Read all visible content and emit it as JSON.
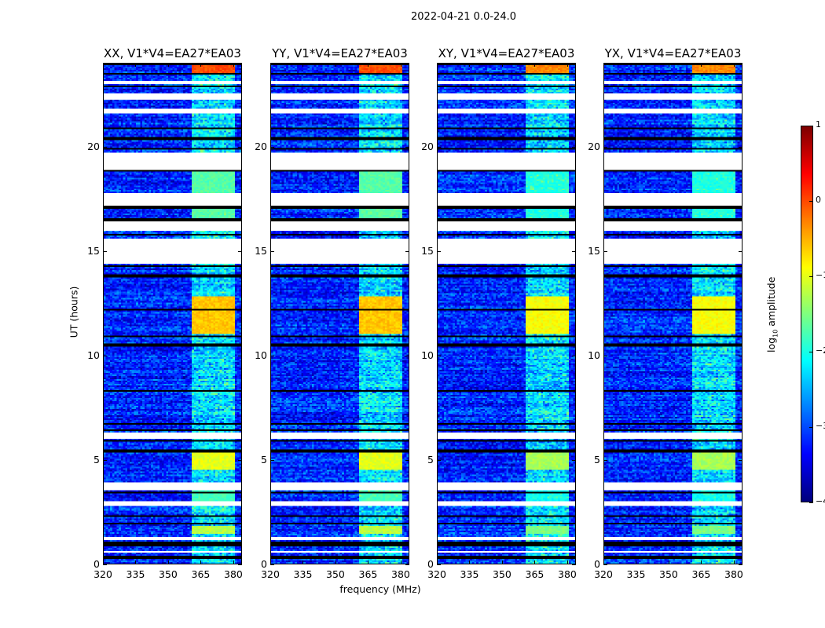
{
  "figure_title": "2022-04-21 0.0-24.0",
  "chart_data": {
    "type": "heatmap",
    "xlabel": "frequency (MHz)",
    "ylabel": "UT (hours)",
    "xlim": [
      320,
      384
    ],
    "ylim": [
      0,
      24
    ],
    "xticks": [
      "320",
      "335",
      "350",
      "365",
      "380"
    ],
    "xtick_values": [
      320,
      335,
      350,
      365,
      380
    ],
    "yticks": [
      "0",
      "5",
      "10",
      "15",
      "20"
    ],
    "ytick_values": [
      0,
      5,
      10,
      15,
      20
    ],
    "panels": [
      {
        "title": "XX, V1*V4=EA27*EA03"
      },
      {
        "title": "YY, V1*V4=EA27*EA03"
      },
      {
        "title": "XY, V1*V4=EA27*EA03"
      },
      {
        "title": "YX, V1*V4=EA27*EA03"
      }
    ],
    "colorbar": {
      "label_prefix": "log",
      "label_sub": "10",
      "label_suffix": " amplitude",
      "range": [
        -4,
        1
      ],
      "ticks": [
        "1",
        "0",
        "−1",
        "−2",
        "−3",
        "−4"
      ],
      "tick_values": [
        1,
        0,
        -1,
        -2,
        -3,
        -4
      ],
      "colormap": "jet"
    },
    "background_level": -3.2,
    "subbands_mhz": [
      [
        361.5,
        366
      ],
      [
        366.5,
        371
      ],
      [
        371.5,
        376
      ],
      [
        376.5,
        381
      ]
    ],
    "flagged_hours": [
      [
        23.0,
        23.2
      ],
      [
        22.3,
        22.6
      ],
      [
        21.6,
        21.8
      ],
      [
        18.9,
        19.7
      ],
      [
        17.2,
        17.8
      ],
      [
        16.0,
        16.4
      ],
      [
        14.4,
        15.6
      ],
      [
        6.0,
        6.3
      ],
      [
        3.5,
        3.9
      ],
      [
        2.8,
        3.0
      ],
      [
        1.1,
        1.3
      ],
      [
        0.5,
        0.6
      ]
    ],
    "dark_hours": [
      24.0,
      23.5,
      22.9,
      20.9,
      20.4,
      19.9,
      18.85,
      17.1,
      16.5,
      16.2,
      15.8,
      15.3,
      14.9,
      14.3,
      13.8,
      12.2,
      10.9,
      10.5,
      8.3,
      6.7,
      6.4,
      5.9,
      5.4,
      3.4,
      2.3,
      1.9,
      1.0,
      0.9,
      0.3
    ],
    "bright_periods": [
      {
        "hours": [
          23.5,
          23.9
        ],
        "level": 0.0
      },
      {
        "hours": [
          11.0,
          12.8
        ],
        "level": -0.6
      },
      {
        "hours": [
          4.5,
          5.3
        ],
        "level": -1.0
      },
      {
        "hours": [
          16.5,
          19.0
        ],
        "level": -1.7
      },
      {
        "hours": [
          3.0,
          3.5
        ],
        "level": -1.8
      },
      {
        "hours": [
          1.4,
          1.8
        ],
        "level": -1.2
      }
    ]
  }
}
